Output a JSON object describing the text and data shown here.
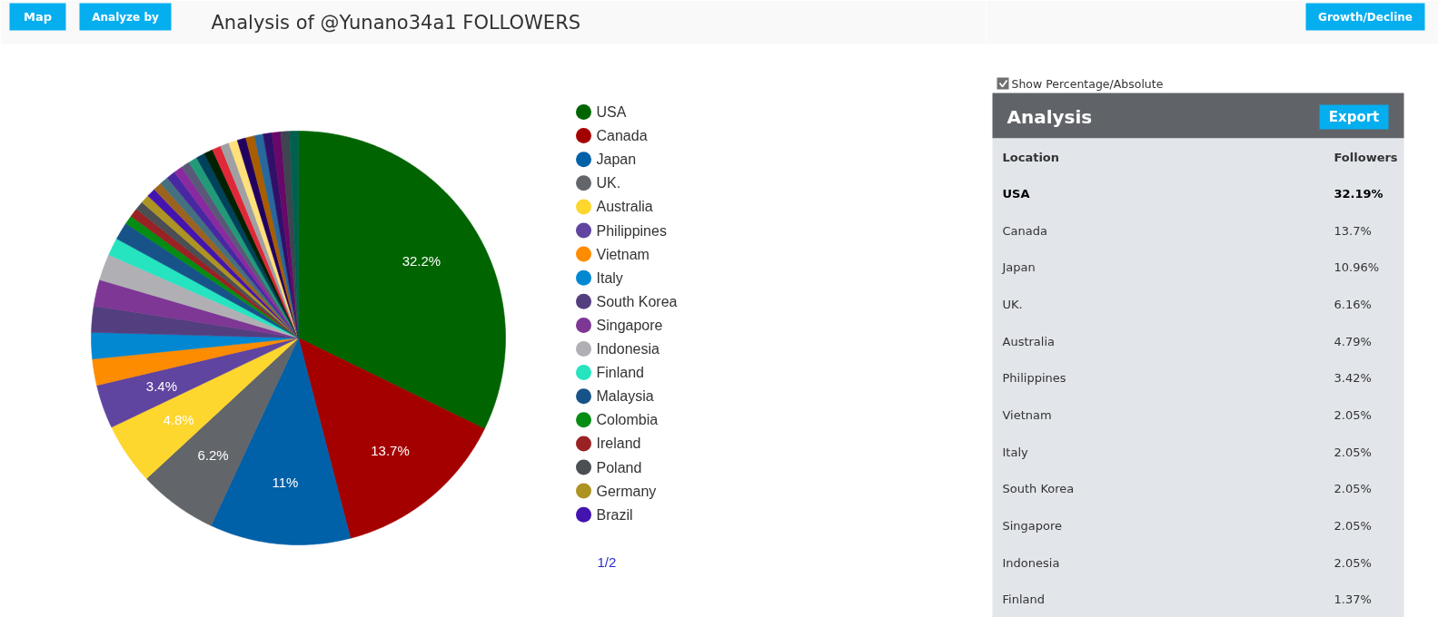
{
  "chart_data": [
    {
      "type": "pie",
      "title": "Analysis of @Yunano34a1 FOLLOWERS",
      "categories": [
        "USA",
        "Canada",
        "Japan",
        "UK.",
        "Australia",
        "Philippines",
        "Vietnam",
        "Italy",
        "South Korea",
        "Singapore",
        "Indonesia",
        "Finland",
        "Malaysia",
        "Colombia",
        "Ireland",
        "Poland",
        "Germany",
        "Brazil",
        null,
        null,
        null,
        null,
        null,
        null,
        null,
        null,
        null,
        null,
        null,
        null,
        null,
        null,
        null,
        null,
        null,
        null
      ],
      "values": [
        32.19,
        13.7,
        10.96,
        6.16,
        4.79,
        3.42,
        2.05,
        2.05,
        2.05,
        2.05,
        2.05,
        1.37,
        1.37,
        0.68,
        0.68,
        0.68,
        0.68,
        0.68,
        0.68,
        0.68,
        0.68,
        0.68,
        0.68,
        0.68,
        0.68,
        0.68,
        0.68,
        0.68,
        0.68,
        0.68,
        0.68,
        0.68,
        0.68,
        0.68,
        0.68,
        0.68
      ],
      "colors": [
        "#006400",
        "#a50000",
        "#0060a8",
        "#62656a",
        "#fdd62e",
        "#5f44a0",
        "#fe8c00",
        "#0288d1",
        "#533f7f",
        "#7e3794",
        "#b0b0b4",
        "#26e4c0",
        "#175389",
        "#058c13",
        "#9a2124",
        "#4b4e52",
        "#ad9322",
        "#4314b0",
        "#9b6320",
        "#44707f",
        "#4828a0",
        "#8a2aa0",
        "#5a5878",
        "#229a78",
        "#00415c",
        "#002200",
        "#e02838",
        "#a0a0a4",
        "#ffe07a",
        "#220060",
        "#a85e00",
        "#28689c",
        "#301068",
        "#680868",
        "#3e4450",
        "#00604e"
      ],
      "value_labels": [
        "32.2%",
        "13.7%",
        "11%",
        "6.2%",
        "4.8%",
        "3.4%",
        null,
        null,
        null,
        null,
        null,
        null,
        null,
        null,
        null,
        null,
        null,
        null,
        null,
        null,
        null,
        null,
        null,
        null,
        null,
        null,
        null,
        null,
        null,
        null,
        null,
        null,
        null,
        null,
        null,
        null
      ],
      "legend": "right",
      "annotations": [
        "Map",
        "Analyze by",
        "1/2"
      ]
    },
    {
      "type": "other",
      "title": "Analysis",
      "xlabel": "Location",
      "ylabel": "Followers",
      "categories": [
        "USA",
        "Canada",
        "Japan",
        "UK.",
        "Australia",
        "Philippines",
        "Vietnam",
        "Italy",
        "South Korea",
        "Singapore",
        "Indonesia",
        "Finland"
      ],
      "values": [
        32.19,
        13.7,
        10.96,
        6.16,
        4.79,
        3.42,
        2.05,
        2.05,
        2.05,
        2.05,
        2.05,
        1.37
      ],
      "value_labels": [
        "32.19%",
        "13.7%",
        "10.96%",
        "6.16%",
        "4.79%",
        "3.42%",
        "2.05%",
        "2.05%",
        "2.05%",
        "2.05%",
        "2.05%",
        "1.37%"
      ],
      "annotations": [
        "Show Percentage/Absolute",
        "Export",
        "Growth/Decline"
      ]
    }
  ]
}
